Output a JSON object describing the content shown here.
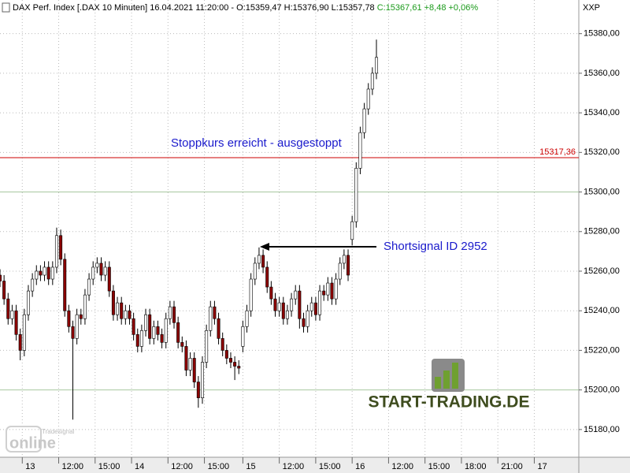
{
  "chart_data": {
    "type": "candlestick",
    "title": "DAX Perf. Index [.DAX  10 Minuten] 16.04.2021 11:20:00 - O:15359,47 H:15376,90 L:15357,78",
    "title_change": "C:15367,61 +8,48 +0,06%",
    "axis_name": "XXP",
    "x": [
      0,
      2,
      4,
      6,
      8,
      10,
      12,
      14,
      16,
      18,
      20,
      22,
      24,
      26,
      28,
      30,
      32,
      34,
      36,
      38,
      40,
      42,
      44,
      46,
      48,
      50,
      52,
      54,
      56,
      58,
      60,
      62,
      64,
      66,
      68,
      70,
      72,
      74,
      76,
      78,
      80,
      82,
      84,
      86,
      88,
      90,
      92,
      94,
      96,
      98,
      100,
      102,
      104,
      106,
      108,
      110,
      112,
      114,
      116,
      118,
      120,
      122,
      124,
      126,
      128,
      130,
      132,
      134,
      136,
      138,
      140,
      142,
      144,
      146,
      148,
      150,
      152,
      154,
      156,
      158,
      160,
      162,
      164,
      166,
      168,
      170,
      172,
      174,
      176,
      178,
      180,
      182,
      184,
      186
    ],
    "open": [
      15258,
      15255,
      15246,
      15236,
      15240,
      15228,
      15220,
      15238,
      15250,
      15256,
      15260,
      15258,
      15262,
      15256,
      15262,
      15278,
      15266,
      15240,
      15232,
      15226,
      15238,
      15236,
      15248,
      15256,
      15262,
      15264,
      15258,
      15262,
      15250,
      15238,
      15244,
      15236,
      15240,
      15236,
      15228,
      15222,
      15230,
      15238,
      15226,
      15232,
      15228,
      15224,
      15236,
      15242,
      15234,
      15224,
      15222,
      15210,
      15216,
      15204,
      15196,
      15214,
      15230,
      15242,
      15236,
      15226,
      15220,
      15216,
      15214,
      15212,
      15222,
      15232,
      15240,
      15256,
      15264,
      15268,
      15262,
      15252,
      15246,
      15240,
      15244,
      15236,
      15240,
      15246,
      15250,
      15236,
      15232,
      15240,
      15244,
      15238,
      15250,
      15248,
      15254,
      15246,
      15256,
      15264,
      15268,
      15276,
      15285,
      15312,
      15330,
      15342,
      15352,
      15360
    ],
    "high": [
      15261,
      15258,
      15249,
      15243,
      15243,
      15231,
      15241,
      15253,
      15259,
      15263,
      15263,
      15265,
      15265,
      15265,
      15282,
      15281,
      15269,
      15243,
      15235,
      15241,
      15241,
      15251,
      15259,
      15265,
      15267,
      15267,
      15265,
      15265,
      15253,
      15247,
      15247,
      15243,
      15243,
      15239,
      15231,
      15233,
      15241,
      15241,
      15235,
      15235,
      15231,
      15239,
      15245,
      15245,
      15237,
      15227,
      15225,
      15219,
      15219,
      15207,
      15217,
      15233,
      15245,
      15245,
      15239,
      15229,
      15223,
      15219,
      15217,
      15215,
      15235,
      15243,
      15259,
      15267,
      15272,
      15271,
      15265,
      15255,
      15249,
      15247,
      15247,
      15243,
      15249,
      15253,
      15253,
      15239,
      15243,
      15247,
      15247,
      15253,
      15253,
      15257,
      15257,
      15259,
      15267,
      15271,
      15271,
      15288,
      15315,
      15333,
      15345,
      15355,
      15363,
      15377
    ],
    "low": [
      15252,
      15243,
      15233,
      15233,
      15225,
      15215,
      15217,
      15235,
      15247,
      15253,
      15255,
      15255,
      15253,
      15253,
      15259,
      15263,
      15237,
      15229,
      15185,
      15223,
      15233,
      15233,
      15245,
      15253,
      15259,
      15255,
      15255,
      15247,
      15235,
      15235,
      15233,
      15233,
      15233,
      15225,
      15219,
      15219,
      15227,
      15223,
      15223,
      15225,
      15221,
      15221,
      15233,
      15231,
      15221,
      15219,
      15207,
      15207,
      15201,
      15191,
      15193,
      15211,
      15227,
      15233,
      15223,
      15217,
      15213,
      15211,
      15205,
      15208,
      15219,
      15229,
      15237,
      15253,
      15261,
      15259,
      15249,
      15243,
      15237,
      15237,
      15233,
      15233,
      15237,
      15243,
      15231,
      15229,
      15229,
      15237,
      15235,
      15235,
      15245,
      15245,
      15243,
      15243,
      15253,
      15261,
      15255,
      15273,
      15282,
      15309,
      15327,
      15339,
      15349,
      15357
    ],
    "close": [
      15255,
      15246,
      15236,
      15240,
      15228,
      15220,
      15238,
      15250,
      15256,
      15260,
      15258,
      15262,
      15256,
      15262,
      15278,
      15266,
      15240,
      15232,
      15226,
      15238,
      15236,
      15248,
      15256,
      15262,
      15264,
      15258,
      15262,
      15250,
      15238,
      15244,
      15236,
      15240,
      15236,
      15228,
      15222,
      15230,
      15238,
      15226,
      15232,
      15228,
      15224,
      15236,
      15242,
      15234,
      15224,
      15222,
      15210,
      15216,
      15204,
      15196,
      15214,
      15230,
      15242,
      15236,
      15226,
      15220,
      15216,
      15214,
      15212,
      15211,
      15232,
      15240,
      15256,
      15264,
      15268,
      15262,
      15252,
      15246,
      15240,
      15244,
      15236,
      15240,
      15246,
      15250,
      15236,
      15232,
      15240,
      15244,
      15238,
      15250,
      15248,
      15254,
      15246,
      15256,
      15264,
      15268,
      15258,
      15285,
      15312,
      15330,
      15342,
      15352,
      15360,
      15368
    ],
    "up_color": "#ffffff",
    "down_color": "#8b0000",
    "wick_color": "#000000",
    "xlim": [
      0,
      286
    ],
    "xticks": [
      {
        "value": 11,
        "label": "13"
      },
      {
        "value": 29,
        "label": "12:00"
      },
      {
        "value": 47,
        "label": "15:00"
      },
      {
        "value": 65,
        "label": "14"
      },
      {
        "value": 83,
        "label": "12:00"
      },
      {
        "value": 101,
        "label": "15:00"
      },
      {
        "value": 120,
        "label": "15"
      },
      {
        "value": 138,
        "label": "12:00"
      },
      {
        "value": 156,
        "label": "15:00"
      },
      {
        "value": 174,
        "label": "16"
      },
      {
        "value": 192,
        "label": "12:00"
      },
      {
        "value": 210,
        "label": "15:00"
      },
      {
        "value": 228,
        "label": "18:00"
      },
      {
        "value": 246,
        "label": "21:00"
      },
      {
        "value": 264,
        "label": "17"
      }
    ],
    "ylim": [
      15166,
      15397
    ],
    "yticks": [
      {
        "value": 15180,
        "label": "15180,00"
      },
      {
        "value": 15200,
        "label": "15200,00"
      },
      {
        "value": 15220,
        "label": "15220,00"
      },
      {
        "value": 15240,
        "label": "15240,00"
      },
      {
        "value": 15260,
        "label": "15260,00"
      },
      {
        "value": 15280,
        "label": "15280,00"
      },
      {
        "value": 15300,
        "label": "15300,00"
      },
      {
        "value": 15320,
        "label": "15320,00"
      },
      {
        "value": 15340,
        "label": "15340,00"
      },
      {
        "value": 15360,
        "label": "15360,00"
      },
      {
        "value": 15380,
        "label": "15380,00"
      }
    ],
    "grid": true,
    "hline": {
      "value": 15317.36,
      "label": "15317,36",
      "color": "#cc0000"
    },
    "annotations": [
      "Stoppkurs erreicht - ausgestoppt",
      "Shortsignal ID 2952"
    ]
  },
  "logos": {
    "site": "START-TRADING.DE",
    "vendor": "Tradesignal",
    "vendor_sub": "online"
  }
}
